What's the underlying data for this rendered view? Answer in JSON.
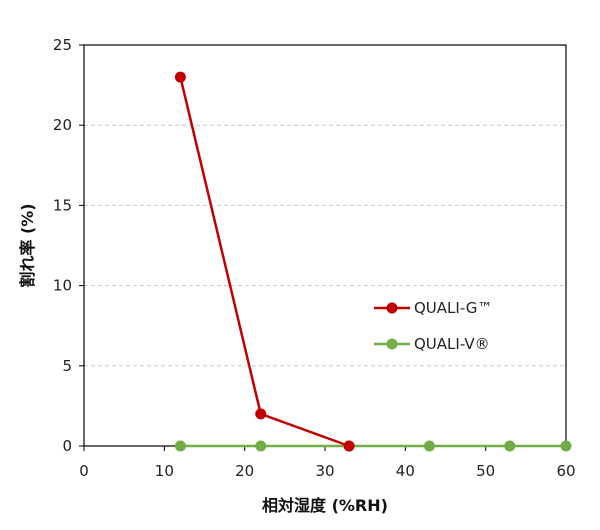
{
  "chart_data": {
    "type": "line",
    "xlabel": "相対湿度 (%RH)",
    "ylabel": "割れ率 (%)",
    "xlim": [
      0,
      60
    ],
    "ylim": [
      0,
      25
    ],
    "x_ticks": [
      "0",
      "10",
      "20",
      "30",
      "40",
      "50",
      "60"
    ],
    "y_ticks": [
      "0",
      "5",
      "10",
      "15",
      "20",
      "25"
    ],
    "grid": "horizontal dashed",
    "legend_position": "right-middle",
    "series": [
      {
        "name": "QUALI-G™",
        "color": "#c00000",
        "points": [
          {
            "x": 12,
            "y": 23
          },
          {
            "x": 22,
            "y": 2
          },
          {
            "x": 33,
            "y": 0
          }
        ]
      },
      {
        "name": "QUALI-V®",
        "color": "#70ad47",
        "points": [
          {
            "x": 12,
            "y": 0
          },
          {
            "x": 22,
            "y": 0
          },
          {
            "x": 33,
            "y": 0
          },
          {
            "x": 43,
            "y": 0
          },
          {
            "x": 53,
            "y": 0
          },
          {
            "x": 60,
            "y": 0
          }
        ]
      }
    ]
  }
}
